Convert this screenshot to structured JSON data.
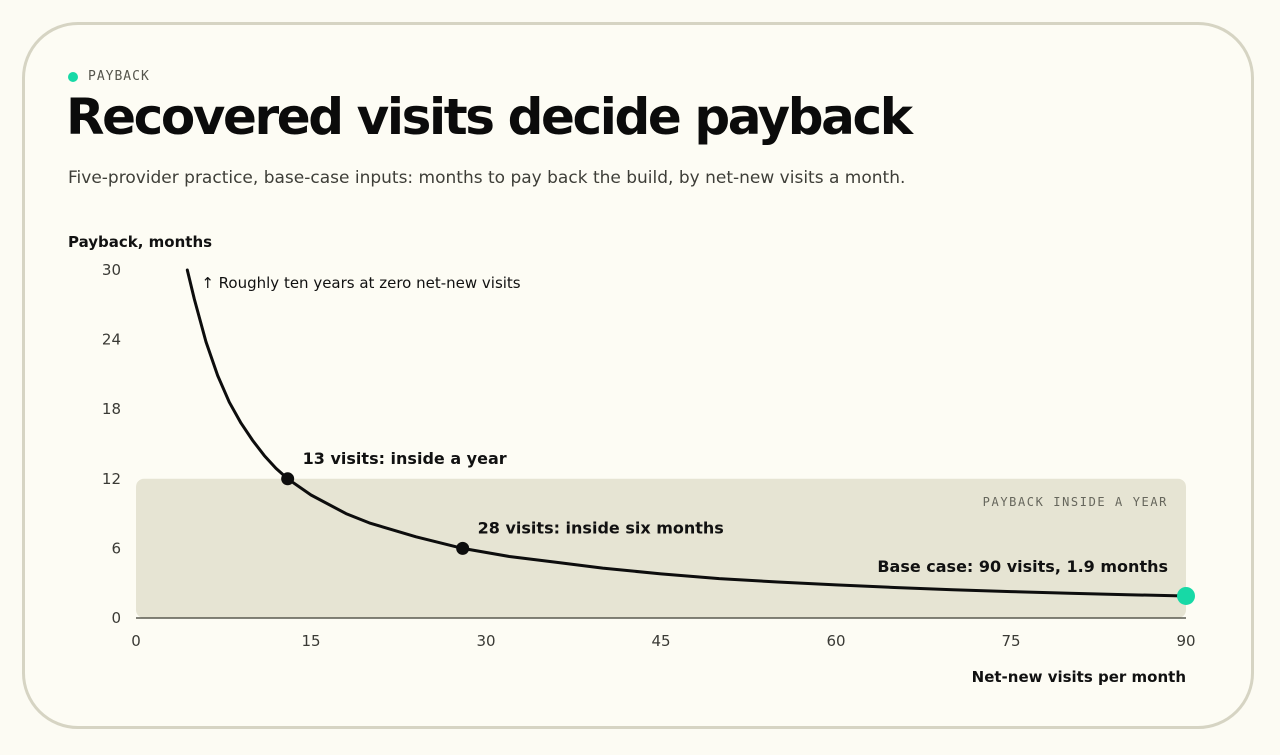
{
  "eyebrow": "PAYBACK",
  "title": "Recovered visits decide payback",
  "subtitle": "Five-provider practice, base-case inputs: months to pay back the build, by net-new visits a month.",
  "colors": {
    "accent": "#17d9a6",
    "band": "#e6e4d3",
    "curve": "#0d0d0d"
  },
  "chart_data": {
    "type": "line",
    "ylabel": "Payback, months",
    "xlabel": "Net-new visits per month",
    "xlim": [
      0,
      90
    ],
    "ylim": [
      0,
      30
    ],
    "x_ticks": [
      "0",
      "15",
      "30",
      "45",
      "60",
      "75",
      "90"
    ],
    "y_ticks": [
      "0",
      "6",
      "12",
      "18",
      "24",
      "30"
    ],
    "x_tick_values": [
      0,
      15,
      30,
      45,
      60,
      75,
      90
    ],
    "y_tick_values": [
      0,
      6,
      12,
      18,
      24,
      30
    ],
    "grid": false,
    "series": [
      {
        "x": [
          4.4,
          5,
          6,
          7,
          8,
          9,
          10,
          11,
          12,
          13,
          15,
          18,
          20,
          24,
          28,
          32,
          36,
          40,
          45,
          50,
          55,
          60,
          65,
          70,
          75,
          80,
          85,
          90
        ],
        "y": [
          30,
          27.5,
          23.8,
          20.9,
          18.6,
          16.8,
          15.3,
          14,
          12.9,
          12,
          10.6,
          9,
          8.2,
          7,
          6,
          5.3,
          4.8,
          4.3,
          3.8,
          3.4,
          3.1,
          2.85,
          2.63,
          2.44,
          2.28,
          2.14,
          2.01,
          1.9
        ]
      }
    ],
    "band": {
      "y_from": 0,
      "y_to": 12,
      "label": "PAYBACK INSIDE A YEAR"
    },
    "annotations": [
      {
        "text": "↑ Roughly ten years at zero net-new visits",
        "x": 4.4,
        "y": 30
      },
      {
        "text": "13 visits: inside a year",
        "x": 13,
        "y": 12,
        "marker": true
      },
      {
        "text": "28 visits: inside six months",
        "x": 28,
        "y": 6,
        "marker": true
      },
      {
        "text": "Base case: 90 visits, 1.9 months",
        "x": 90,
        "y": 1.9,
        "marker": true,
        "accent": true
      }
    ]
  }
}
